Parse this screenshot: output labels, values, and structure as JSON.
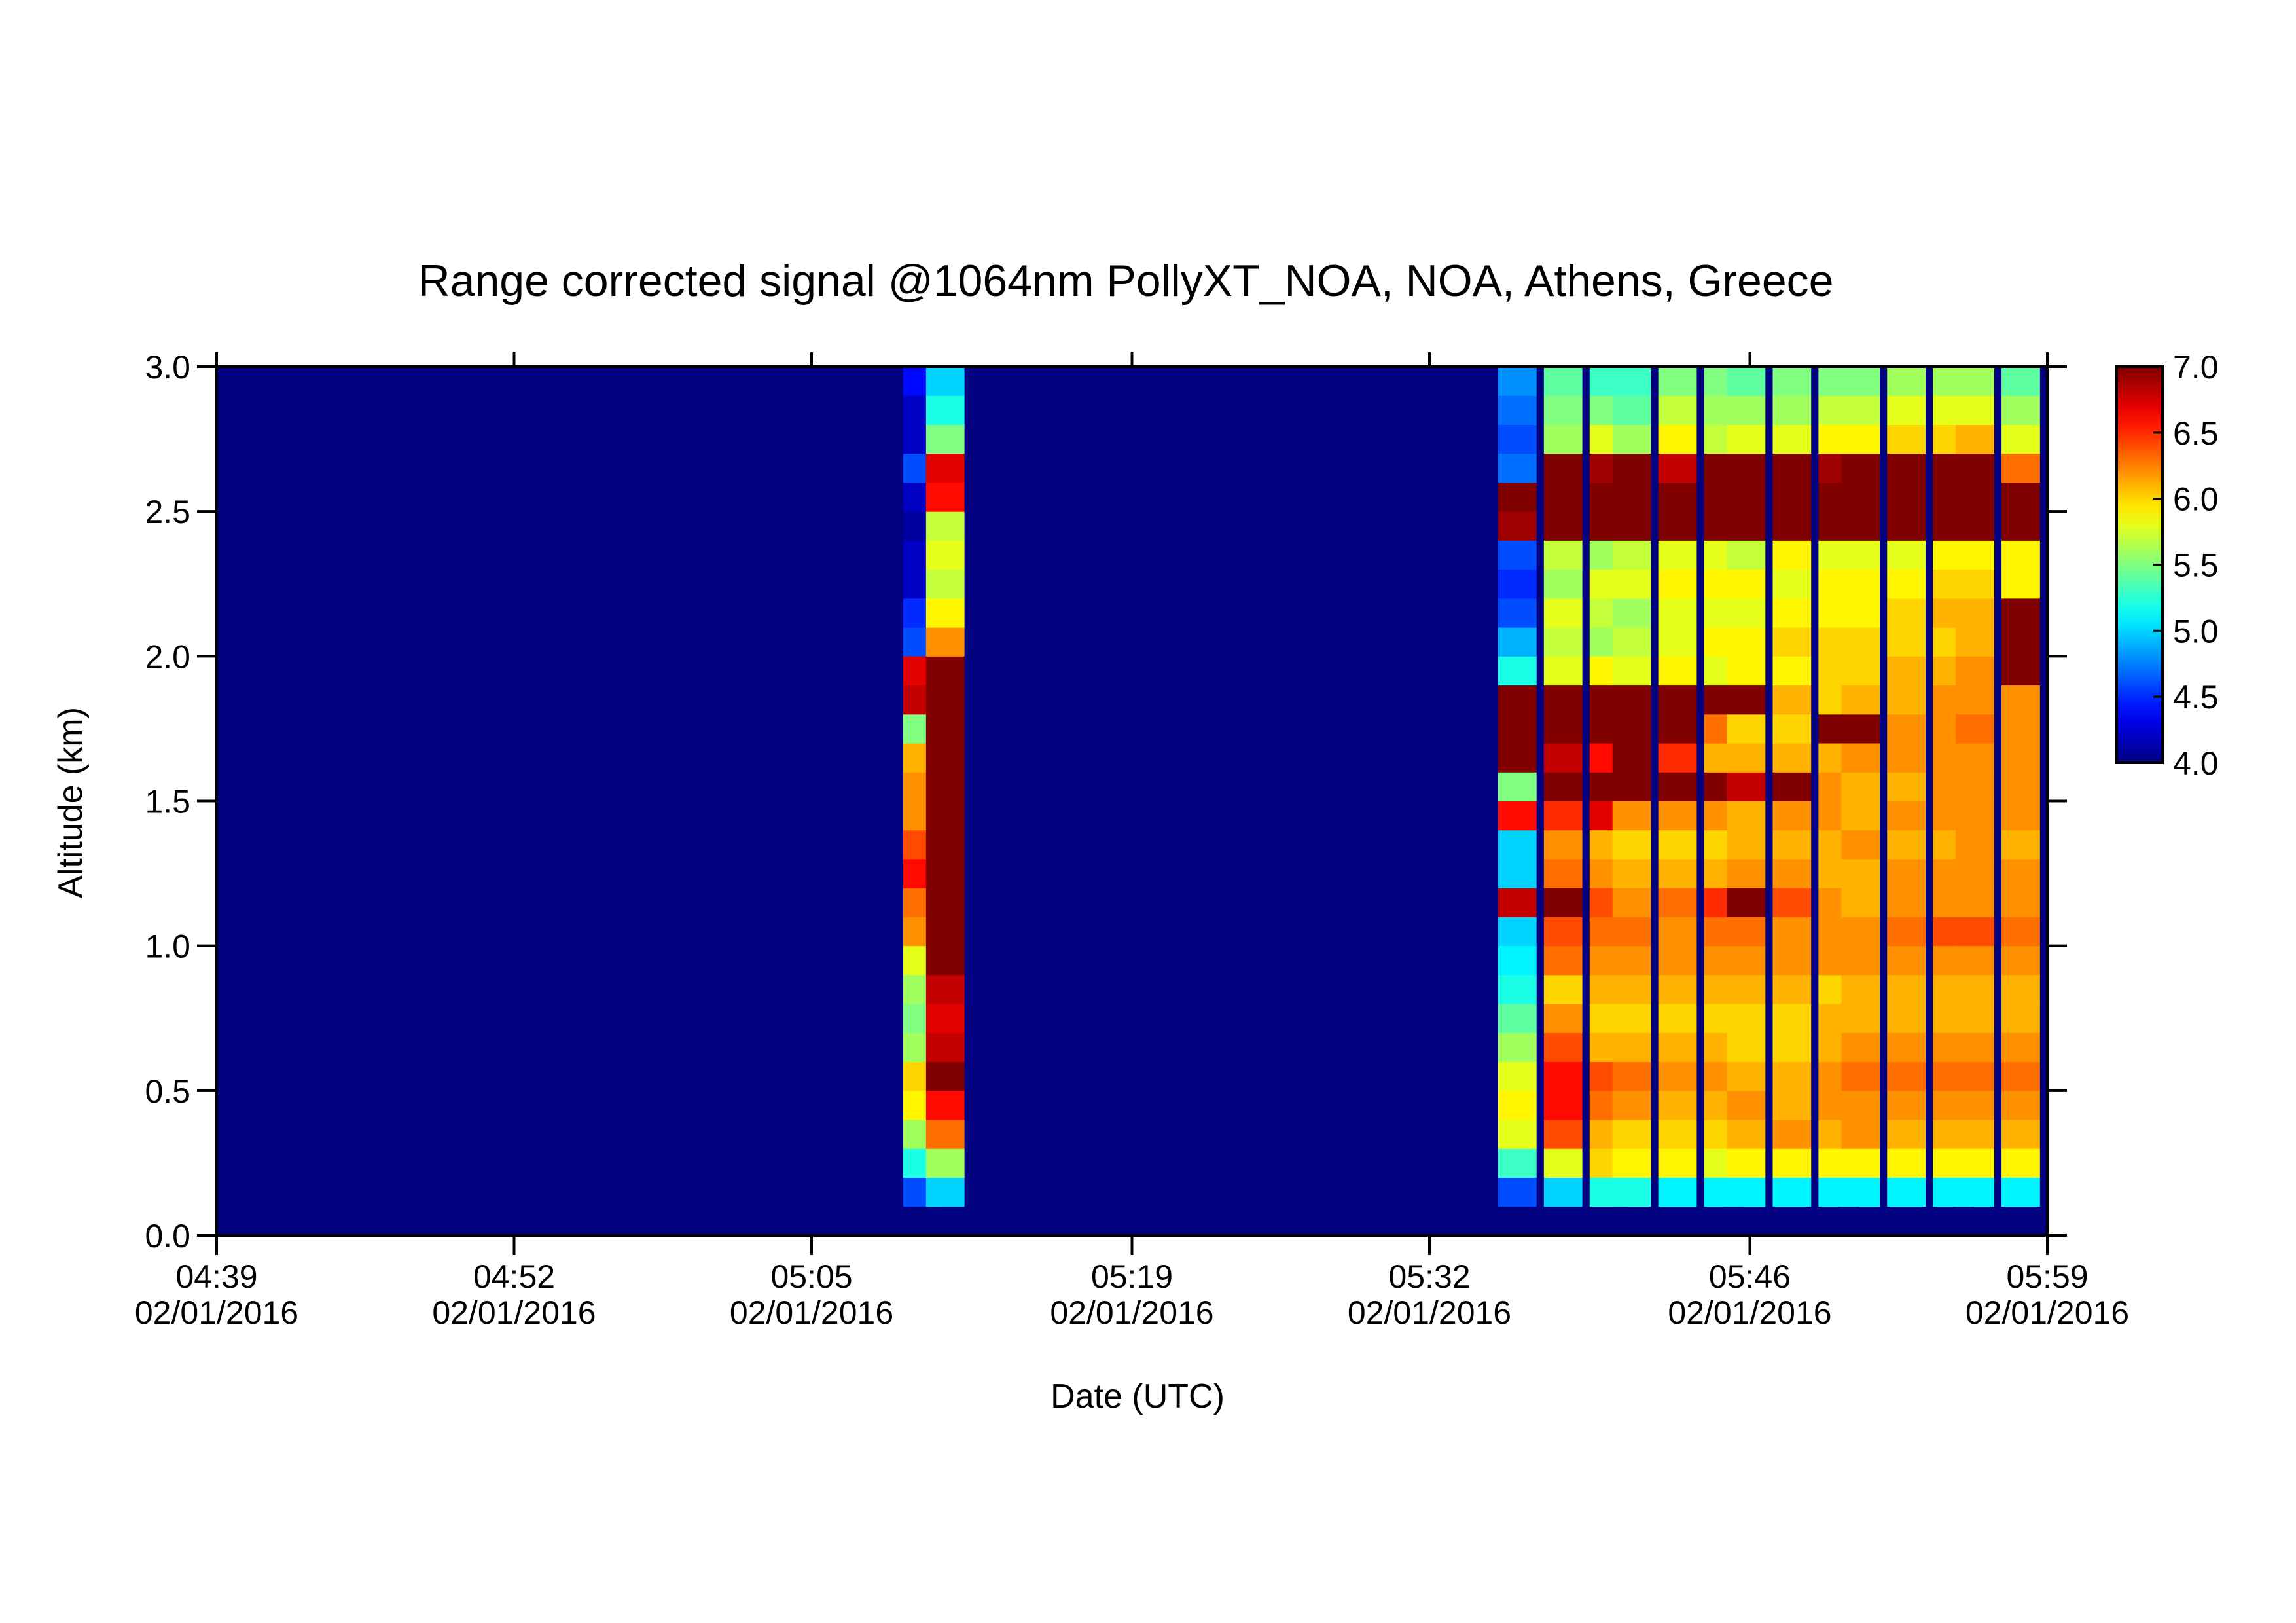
{
  "chart_data": {
    "type": "heatmap",
    "title": "Range corrected signal @1064nm  PollyXT_NOA, NOA, Athens, Greece",
    "x_label": "Date (UTC)",
    "y_label": "Altitude (km)",
    "colormap": "jet",
    "x": [
      "05:09",
      "05:10",
      "05:35",
      "05:37",
      "05:39",
      "05:40",
      "05:42",
      "05:44",
      "05:45",
      "05:47",
      "05:49",
      "05:50",
      "05:52",
      "05:54",
      "05:55",
      "05:57"
    ],
    "y": [
      0.0,
      0.1,
      0.2,
      0.3,
      0.4,
      0.5,
      0.6,
      0.7,
      0.8,
      0.9,
      1.0,
      1.1,
      1.2,
      1.3,
      1.4,
      1.5,
      1.6,
      1.7,
      1.8,
      1.9,
      2.0,
      2.1,
      2.2,
      2.3,
      2.4,
      2.5,
      2.6,
      2.7,
      2.8,
      2.9
    ],
    "z": [
      [
        null,
        4.6,
        5.2,
        5.6,
        5.9,
        6.0,
        5.6,
        5.5,
        5.6,
        5.8,
        6.2,
        6.3,
        6.6,
        6.4,
        6.2,
        6.2,
        6.1,
        5.5,
        6.8,
        6.7,
        4.6,
        4.5,
        4.2,
        4.2,
        4.1,
        4.2,
        4.6,
        4.2,
        4.2,
        4.4
      ],
      [
        null,
        5.0,
        5.6,
        6.3,
        6.6,
        7.0,
        6.8,
        6.7,
        6.8,
        7.0,
        7.0,
        7.0,
        7.0,
        7.0,
        7.0,
        7.0,
        7.0,
        7.0,
        7.0,
        7.0,
        6.2,
        5.9,
        5.7,
        5.8,
        5.7,
        6.6,
        6.7,
        5.5,
        5.2,
        5.0
      ],
      [
        null,
        4.6,
        5.3,
        5.8,
        5.9,
        5.8,
        5.6,
        5.4,
        5.2,
        5.1,
        5.0,
        6.8,
        5.0,
        5.0,
        6.6,
        5.5,
        7.0,
        7.0,
        7.0,
        5.2,
        4.9,
        4.6,
        4.5,
        4.6,
        6.9,
        7.0,
        4.7,
        4.6,
        4.7,
        4.8
      ],
      [
        null,
        5.0,
        5.8,
        6.4,
        6.6,
        6.6,
        6.4,
        6.2,
        6.0,
        6.3,
        6.4,
        7.0,
        6.3,
        6.2,
        6.5,
        7.0,
        6.8,
        7.0,
        7.0,
        5.8,
        5.7,
        5.8,
        5.6,
        5.7,
        7.0,
        7.0,
        7.0,
        5.6,
        5.5,
        5.4
      ],
      [
        null,
        5.2,
        6.0,
        6.1,
        6.3,
        6.4,
        6.1,
        6.0,
        6.1,
        6.2,
        6.3,
        6.4,
        6.2,
        6.1,
        6.7,
        7.0,
        6.6,
        7.0,
        7.0,
        5.9,
        5.6,
        5.7,
        5.8,
        5.6,
        7.0,
        7.0,
        6.9,
        5.8,
        5.5,
        5.3
      ],
      [
        null,
        5.2,
        5.9,
        6.0,
        6.2,
        6.3,
        6.1,
        6.0,
        6.1,
        6.2,
        6.3,
        6.2,
        6.1,
        6.0,
        6.2,
        7.0,
        7.0,
        7.0,
        7.0,
        5.8,
        5.7,
        5.6,
        5.8,
        5.7,
        7.0,
        7.0,
        7.0,
        5.6,
        5.4,
        5.3
      ],
      [
        null,
        5.1,
        5.9,
        6.0,
        6.1,
        6.2,
        6.1,
        6.0,
        6.1,
        6.2,
        6.2,
        6.3,
        6.1,
        6.0,
        6.2,
        7.0,
        6.5,
        7.0,
        7.0,
        5.9,
        5.8,
        5.8,
        5.9,
        5.8,
        7.0,
        7.0,
        6.8,
        5.9,
        5.7,
        5.5
      ],
      [
        null,
        5.1,
        5.8,
        6.0,
        6.1,
        6.2,
        6.1,
        6.0,
        6.1,
        6.2,
        6.3,
        6.5,
        6.1,
        6.0,
        6.2,
        7.0,
        6.1,
        6.3,
        7.0,
        5.8,
        5.9,
        5.8,
        5.9,
        5.8,
        7.0,
        7.0,
        7.0,
        5.7,
        5.6,
        5.5
      ],
      [
        null,
        5.1,
        5.9,
        6.1,
        6.2,
        6.1,
        6.0,
        6.0,
        6.1,
        6.2,
        6.3,
        7.0,
        6.2,
        6.1,
        6.1,
        6.8,
        6.1,
        6.0,
        7.0,
        5.9,
        5.9,
        5.8,
        5.9,
        5.7,
        7.0,
        7.0,
        7.0,
        5.8,
        5.6,
        5.4
      ],
      [
        null,
        5.1,
        5.9,
        6.2,
        6.1,
        6.1,
        6.0,
        6.0,
        6.1,
        6.2,
        6.2,
        6.4,
        6.2,
        6.1,
        6.2,
        7.0,
        6.1,
        6.0,
        6.1,
        5.9,
        6.0,
        5.9,
        5.8,
        5.9,
        7.0,
        7.0,
        7.0,
        5.8,
        5.6,
        5.5
      ],
      [
        null,
        5.1,
        5.9,
        6.1,
        6.2,
        6.2,
        6.1,
        6.1,
        6.0,
        6.2,
        6.2,
        6.2,
        6.1,
        6.1,
        6.2,
        6.2,
        6.1,
        7.0,
        6.0,
        6.0,
        6.0,
        5.9,
        5.9,
        5.8,
        7.0,
        7.0,
        6.9,
        5.9,
        5.7,
        5.5
      ],
      [
        null,
        5.1,
        5.9,
        6.2,
        6.2,
        6.3,
        6.2,
        6.1,
        6.1,
        6.2,
        6.2,
        6.1,
        6.1,
        6.2,
        6.1,
        6.1,
        6.2,
        7.0,
        6.1,
        6.0,
        6.0,
        5.9,
        5.9,
        5.8,
        7.0,
        7.0,
        7.0,
        5.9,
        5.7,
        5.5
      ],
      [
        null,
        5.1,
        5.9,
        6.1,
        6.2,
        6.3,
        6.2,
        6.1,
        6.1,
        6.2,
        6.3,
        6.2,
        6.2,
        6.1,
        6.2,
        6.1,
        6.2,
        6.2,
        6.1,
        6.1,
        6.0,
        6.0,
        5.9,
        5.8,
        7.0,
        7.0,
        7.0,
        6.0,
        5.8,
        5.6
      ],
      [
        null,
        5.1,
        5.9,
        6.1,
        6.2,
        6.3,
        6.2,
        6.1,
        6.1,
        6.2,
        6.4,
        6.2,
        6.2,
        6.1,
        6.2,
        6.2,
        6.2,
        6.2,
        6.2,
        6.1,
        6.0,
        6.1,
        6.0,
        5.9,
        7.0,
        7.0,
        7.0,
        6.0,
        5.8,
        5.6
      ],
      [
        null,
        5.1,
        5.9,
        6.1,
        6.2,
        6.3,
        6.2,
        6.1,
        6.1,
        6.2,
        6.4,
        6.2,
        6.2,
        6.2,
        6.2,
        6.2,
        6.2,
        6.3,
        6.2,
        6.2,
        6.1,
        6.1,
        6.0,
        5.9,
        7.0,
        7.0,
        7.0,
        6.1,
        5.8,
        5.6
      ],
      [
        null,
        5.1,
        5.9,
        6.1,
        6.2,
        6.3,
        6.2,
        6.1,
        6.1,
        6.2,
        6.3,
        6.2,
        6.2,
        6.1,
        6.2,
        6.2,
        6.2,
        6.2,
        6.2,
        7.0,
        7.0,
        7.0,
        5.9,
        5.9,
        7.0,
        7.0,
        6.3,
        5.8,
        5.6,
        5.4
      ]
    ],
    "xlim": [
      "04:39",
      "05:59"
    ],
    "xticks": [
      {
        "value": "04:39",
        "label": [
          "04:39",
          "02/01/2016"
        ]
      },
      {
        "value": "04:52",
        "label": [
          "04:52",
          "02/01/2016"
        ]
      },
      {
        "value": "05:05",
        "label": [
          "05:05",
          "02/01/2016"
        ]
      },
      {
        "value": "05:19",
        "label": [
          "05:19",
          "02/01/2016"
        ]
      },
      {
        "value": "05:32",
        "label": [
          "05:32",
          "02/01/2016"
        ]
      },
      {
        "value": "05:46",
        "label": [
          "05:46",
          "02/01/2016"
        ]
      },
      {
        "value": "05:59",
        "label": [
          "05:59",
          "02/01/2016"
        ]
      }
    ],
    "ylim": [
      0,
      3
    ],
    "yticks": [
      {
        "value": 0,
        "label": "0.0"
      },
      {
        "value": 0.5,
        "label": "0.5"
      },
      {
        "value": 1,
        "label": "1.0"
      },
      {
        "value": 1.5,
        "label": "1.5"
      },
      {
        "value": 2,
        "label": "2.0"
      },
      {
        "value": 2.5,
        "label": "2.5"
      },
      {
        "value": 3,
        "label": "3.0"
      }
    ],
    "clim": [
      4,
      7
    ],
    "cticks": [
      {
        "value": 4,
        "label": "4.0"
      },
      {
        "value": 4.5,
        "label": "4.5"
      },
      {
        "value": 5,
        "label": "5.0"
      },
      {
        "value": 5.5,
        "label": "5.5"
      },
      {
        "value": 6,
        "label": "6.0"
      },
      {
        "value": 6.5,
        "label": "6.5"
      },
      {
        "value": 7,
        "label": "7.0"
      }
    ]
  }
}
